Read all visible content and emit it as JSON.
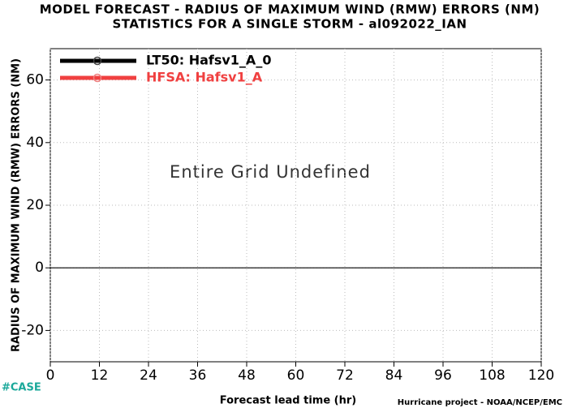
{
  "chart_data": {
    "type": "line",
    "title": "MODEL FORECAST - RADIUS OF MAXIMUM WIND (RMW) ERRORS (NM)",
    "subtitle": "STATISTICS FOR A SINGLE STORM - al092022_IAN",
    "x_label": "Forecast lead time (hr)",
    "y_label": "RADIUS OF MAXIMUM WIND (RMW) ERRORS (NM)",
    "annotations": [
      "Entire Grid Undefined",
      "#CASE",
      "Hurricane project - NOAA/NCEP/EMC"
    ],
    "series": [
      {
        "name": "LT50: Hafsv1_A_0",
        "color": "#000000",
        "values": []
      },
      {
        "name": "HFSA: Hafsv1_A",
        "color": "#f04040",
        "values": []
      }
    ],
    "xlim": [
      0,
      120
    ],
    "xticks": [
      0,
      12,
      24,
      36,
      48,
      60,
      72,
      84,
      96,
      108,
      120
    ],
    "ylim": [
      -30,
      70
    ],
    "yticks": [
      -20,
      0,
      20,
      40,
      60
    ],
    "grid": true,
    "legend": "top-left"
  }
}
